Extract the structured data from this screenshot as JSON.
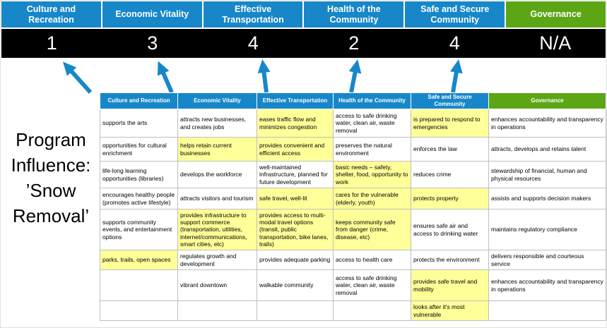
{
  "colors": {
    "blue": "#1787c9",
    "green": "#5ca616",
    "highlight": "#ffff99",
    "score_band": "#000000",
    "grid": "#bfbfbf"
  },
  "title": {
    "text": "Program Influence: ’Snow Removal’"
  },
  "arrows": {
    "name": "up-arrow",
    "count": 5,
    "color": "#1787c9"
  },
  "scoreboard": [
    {
      "label": "Culture and Recreation",
      "score": "1",
      "theme": "blue"
    },
    {
      "label": "Economic Vitality",
      "score": "3",
      "theme": "blue"
    },
    {
      "label": "Effective Transportation",
      "score": "4",
      "theme": "blue"
    },
    {
      "label": "Health of the Community",
      "score": "2",
      "theme": "blue"
    },
    {
      "label": "Safe and Secure Community",
      "score": "4",
      "theme": "blue"
    },
    {
      "label": "Governance",
      "score": "N/A",
      "theme": "green"
    }
  ],
  "matrix": {
    "headers": [
      {
        "label": "Culture and Recreation",
        "theme": "blue"
      },
      {
        "label": "Economic Vitality",
        "theme": "blue"
      },
      {
        "label": "Effective Transportation",
        "theme": "blue"
      },
      {
        "label": "Health of the Community",
        "theme": "blue"
      },
      {
        "label": "Safe and Secure Community",
        "theme": "blue"
      },
      {
        "label": "Governance",
        "theme": "green"
      }
    ],
    "rows": [
      [
        {
          "text": "supports the arts",
          "highlight": false
        },
        {
          "text": "attracts new businesses, and creates jobs",
          "highlight": false
        },
        {
          "text": "eases traffic flow and minimizes congestion",
          "highlight": true
        },
        {
          "text": "access to safe drinking water, clean air, waste removal",
          "highlight": false
        },
        {
          "text": "is prepared to respond to emergencies",
          "highlight": true
        },
        {
          "text": "enhances accountability and transparency in operations",
          "highlight": false
        }
      ],
      [
        {
          "text": "opportunities for cultural enrichment",
          "highlight": false
        },
        {
          "text": "helps retain current businesses",
          "highlight": true
        },
        {
          "text": "provides convenient and efficient access",
          "highlight": true
        },
        {
          "text": "preserves the natural environment",
          "highlight": false
        },
        {
          "text": "enforces the law",
          "highlight": false
        },
        {
          "text": "attracts, develops and retains talent",
          "highlight": false
        }
      ],
      [
        {
          "text": "life-long learning opportunities (libraries)",
          "highlight": false
        },
        {
          "text": "develops the workforce",
          "highlight": false
        },
        {
          "text": "well-maintained infrastructure, planned for future development",
          "highlight": false
        },
        {
          "text": "basic needs – safety, shelter, food, opportunity to work",
          "highlight": true
        },
        {
          "text": "reduces crime",
          "highlight": false
        },
        {
          "text": "stewardship of financial, human and physical resources",
          "highlight": false
        }
      ],
      [
        {
          "text": "encourages healthy people (promotes active lifestyle)",
          "highlight": false
        },
        {
          "text": "attracts visitors and tourism",
          "highlight": false
        },
        {
          "text": "safe travel, well-lit",
          "highlight": true
        },
        {
          "text": "cares for the vulnerable (elderly, youth)",
          "highlight": true
        },
        {
          "text": "protects property",
          "highlight": true
        },
        {
          "text": "assists and supports decision makers",
          "highlight": false
        }
      ],
      [
        {
          "text": "supports community events, and entertainment options",
          "highlight": false
        },
        {
          "text": "provides infrastructure to support commerce (transportation, utilities, internet/communications, smart cities, etc)",
          "highlight": true
        },
        {
          "text": "provides access to multi-modal travel options (transit, public transportation, bike lanes, trails)",
          "highlight": true
        },
        {
          "text": "keeps community safe from danger (crime, disease, etc)",
          "highlight": true
        },
        {
          "text": "ensures safe air and access to drinking water",
          "highlight": false
        },
        {
          "text": "maintains regulatory compliance",
          "highlight": false
        }
      ],
      [
        {
          "text": "parks, trails, open spaces",
          "highlight": true
        },
        {
          "text": "regulates growth and development",
          "highlight": false
        },
        {
          "text": "provides adequate parking",
          "highlight": false
        },
        {
          "text": "access to health care",
          "highlight": false
        },
        {
          "text": "protects the environment",
          "highlight": false
        },
        {
          "text": "delivers responsible and courteous service",
          "highlight": false
        }
      ],
      [
        {
          "text": "",
          "highlight": false
        },
        {
          "text": "vibrant downtown",
          "highlight": false
        },
        {
          "text": "walkable community",
          "highlight": false
        },
        {
          "text": "access to safe drinking water, clean air, waste removal",
          "highlight": false
        },
        {
          "text": "provides safe travel and mobility",
          "highlight": true
        },
        {
          "text": "enhances accountability and transparency in operations",
          "highlight": false
        }
      ],
      [
        {
          "text": "",
          "highlight": false
        },
        {
          "text": "",
          "highlight": false
        },
        {
          "text": "",
          "highlight": false
        },
        {
          "text": "",
          "highlight": false
        },
        {
          "text": "looks after it's most vulnerable",
          "highlight": true
        },
        {
          "text": "",
          "highlight": false
        }
      ]
    ]
  }
}
